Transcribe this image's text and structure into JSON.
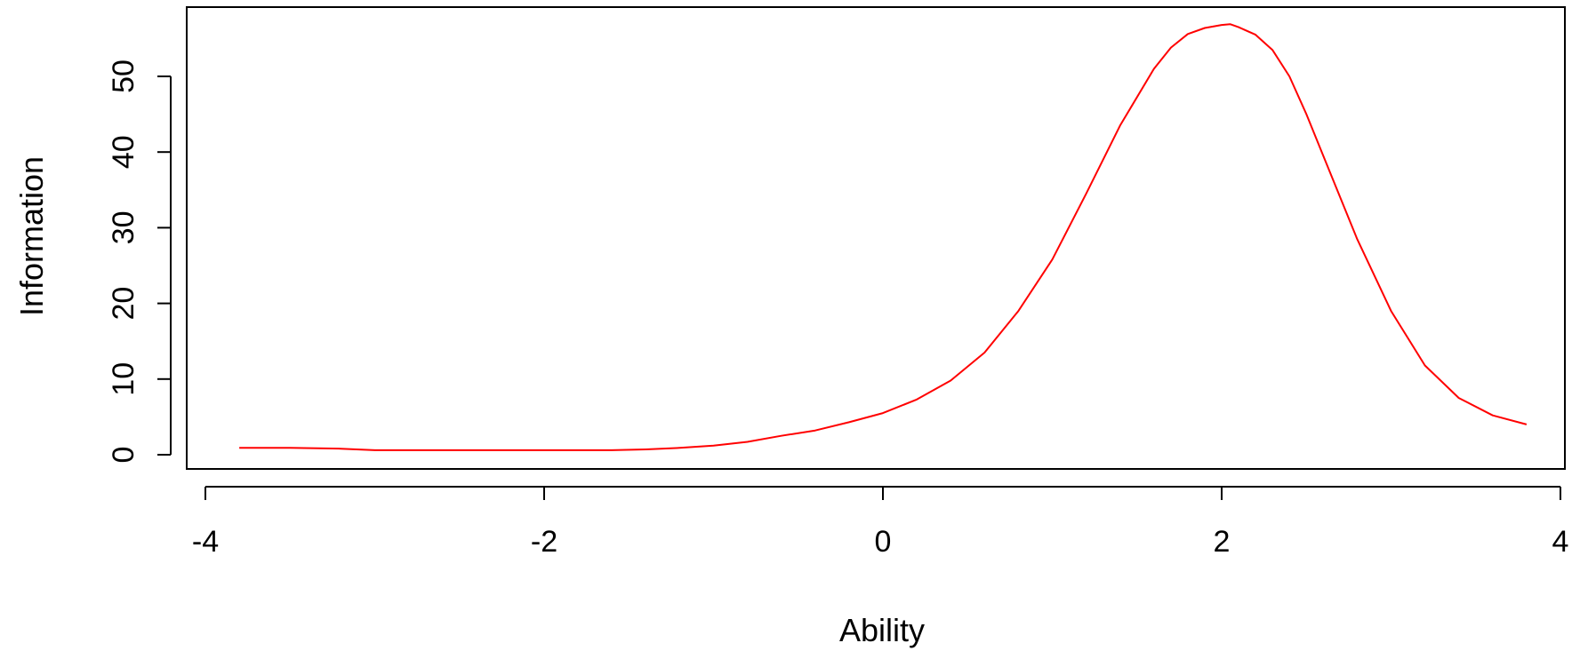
{
  "chart_data": {
    "type": "line",
    "title": "",
    "xlabel": "Ability",
    "ylabel": "Information",
    "xlim": [
      -4,
      4
    ],
    "ylim": [
      0,
      57
    ],
    "xticks": [
      -4,
      -2,
      0,
      2,
      4
    ],
    "yticks": [
      0,
      10,
      20,
      30,
      40,
      50
    ],
    "grid": false,
    "legend": "none",
    "series": [
      {
        "color": "#ff0000",
        "x": [
          -3.8,
          -3.5,
          -3.2,
          -3.0,
          -2.8,
          -2.6,
          -2.4,
          -2.2,
          -2.0,
          -1.8,
          -1.6,
          -1.4,
          -1.2,
          -1.0,
          -0.8,
          -0.6,
          -0.4,
          -0.2,
          0.0,
          0.2,
          0.4,
          0.6,
          0.8,
          1.0,
          1.2,
          1.4,
          1.6,
          1.7,
          1.8,
          1.9,
          2.0,
          2.05,
          2.1,
          2.2,
          2.3,
          2.4,
          2.5,
          2.6,
          2.8,
          3.0,
          3.2,
          3.4,
          3.6,
          3.8
        ],
        "y": [
          0.9,
          0.9,
          0.8,
          0.6,
          0.6,
          0.6,
          0.6,
          0.6,
          0.6,
          0.6,
          0.6,
          0.7,
          0.9,
          1.2,
          1.7,
          2.5,
          3.2,
          4.3,
          5.5,
          7.3,
          9.8,
          13.5,
          19.0,
          25.8,
          34.5,
          43.5,
          51.0,
          53.8,
          55.6,
          56.4,
          56.8,
          56.9,
          56.5,
          55.5,
          53.5,
          50.0,
          45.0,
          39.5,
          28.5,
          19.0,
          11.8,
          7.5,
          5.2,
          4.0
        ]
      }
    ]
  }
}
